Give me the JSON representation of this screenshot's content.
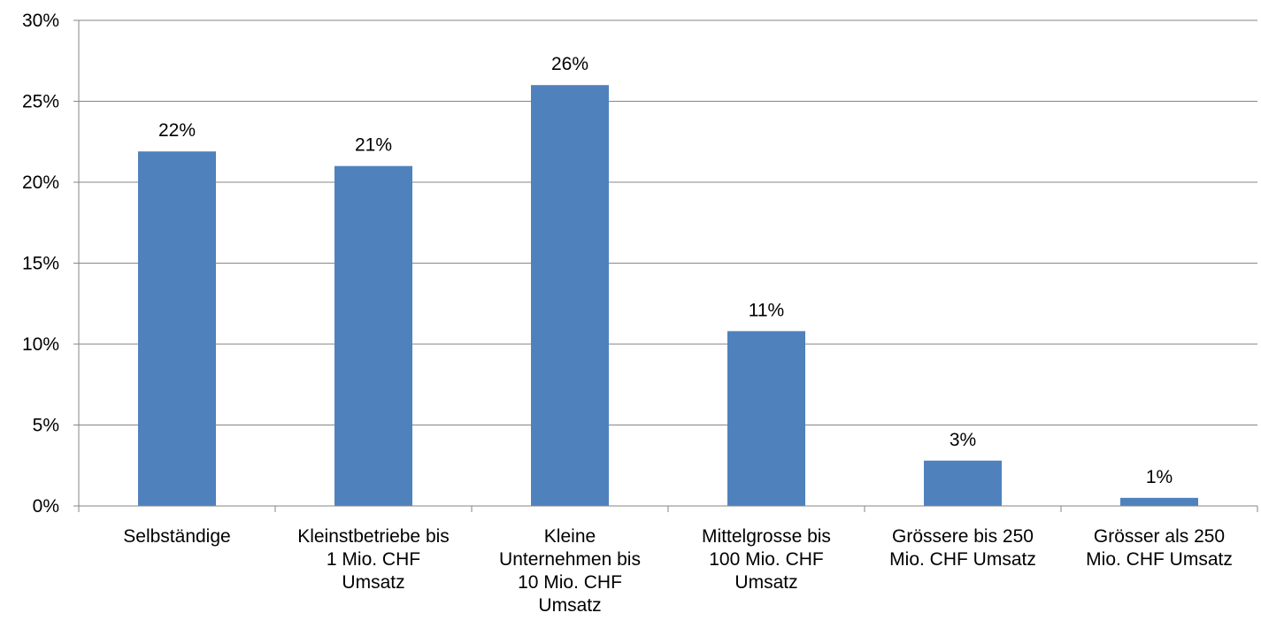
{
  "chart_data": {
    "type": "bar",
    "categories": [
      [
        "Selbständige"
      ],
      [
        "Kleinstbetriebe bis",
        "1 Mio. CHF",
        "Umsatz"
      ],
      [
        "Kleine",
        "Unternehmen bis",
        "10 Mio. CHF",
        "Umsatz"
      ],
      [
        "Mittelgrosse bis",
        "100 Mio. CHF",
        "Umsatz"
      ],
      [
        "Grössere bis 250",
        "Mio. CHF Umsatz"
      ],
      [
        "Grösser als 250",
        "Mio. CHF Umsatz"
      ]
    ],
    "values": [
      21.9,
      21.0,
      26.0,
      10.8,
      2.8,
      0.5
    ],
    "data_labels": [
      "22%",
      "21%",
      "26%",
      "11%",
      "3%",
      "1%"
    ],
    "y_ticks": [
      "0%",
      "5%",
      "10%",
      "15%",
      "20%",
      "25%",
      "30%"
    ],
    "ylim": [
      0,
      30
    ],
    "ytick_step": 5,
    "title": "",
    "xlabel": "",
    "ylabel": "",
    "grid": true,
    "colors": {
      "bar": "#4F81BD",
      "grid": "#868686",
      "axis": "#868686",
      "text": "#000000"
    }
  }
}
